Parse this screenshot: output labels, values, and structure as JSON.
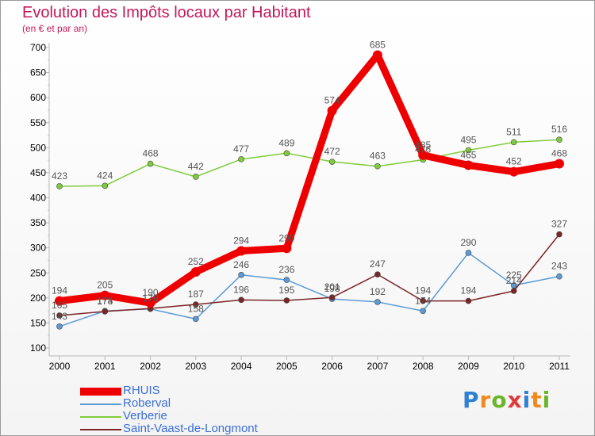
{
  "chart_data": {
    "type": "line",
    "title": "Evolution des Impôts locaux par Habitant",
    "subtitle": "(en € et par an)",
    "xlabel": "",
    "ylabel": "",
    "categories": [
      "2000",
      "2001",
      "2002",
      "2003",
      "2004",
      "2005",
      "2006",
      "2007",
      "2008",
      "2009",
      "2010",
      "2011"
    ],
    "ylim": [
      100,
      700
    ],
    "yticks": [
      100,
      150,
      200,
      250,
      300,
      350,
      400,
      450,
      500,
      550,
      600,
      650,
      700
    ],
    "grid": false,
    "legend_position": "bottom-left",
    "series": [
      {
        "name": "RHUIS",
        "color": "#ee0000",
        "values": [
          194,
          205,
          190,
          252,
          294,
          299,
          574,
          685,
          485,
          465,
          452,
          468
        ]
      },
      {
        "name": "Roberval",
        "color": "#5b9bd5",
        "values": [
          143,
          174,
          178,
          158,
          246,
          236,
          198,
          192,
          174,
          290,
          225,
          243
        ]
      },
      {
        "name": "Verberie",
        "color": "#7fcc3a",
        "values": [
          423,
          424,
          468,
          442,
          477,
          489,
          472,
          463,
          476,
          495,
          511,
          516
        ]
      },
      {
        "name": "Saint-Vaast-de-Longmont",
        "color": "#7b2626",
        "values": [
          165,
          173,
          179,
          187,
          196,
          195,
          201,
          247,
          194,
          194,
          214,
          327
        ]
      }
    ]
  },
  "logo": {
    "letters": [
      "P",
      "r",
      "o",
      "x",
      "i",
      "t",
      "i"
    ],
    "colors": [
      "#2f7fd4",
      "#f08a1c",
      "#6bb52a",
      "#e03a3a",
      "#2f7fd4",
      "#f08a1c",
      "#6bb52a"
    ]
  }
}
